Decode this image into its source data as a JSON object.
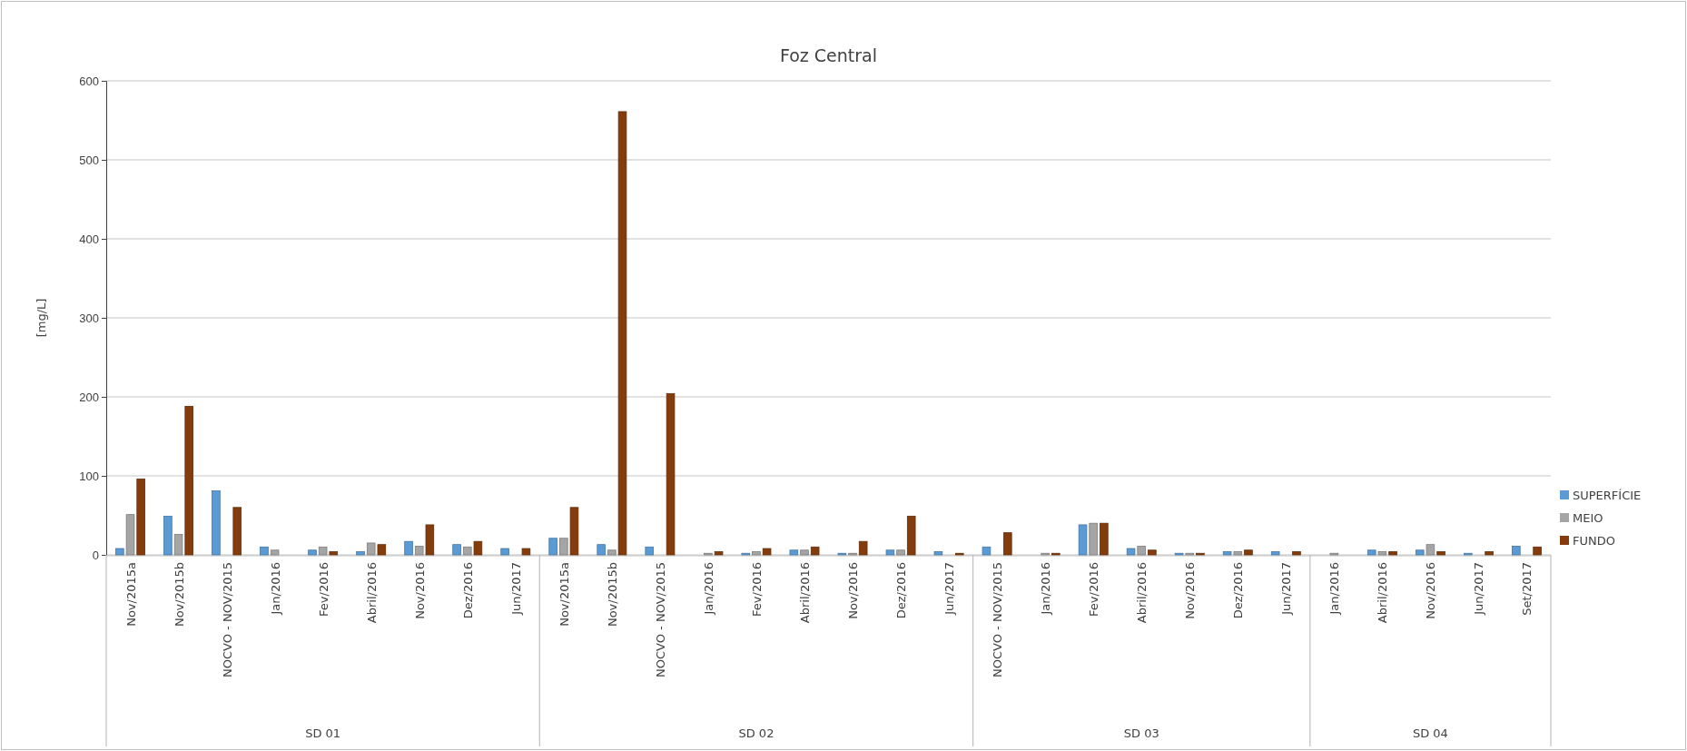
{
  "chart_data": {
    "type": "bar",
    "title": "Foz Central",
    "ylabel": "[mg/L]",
    "categories": [
      "Nov/2015a",
      "Nov/2015b",
      "NOCVO - NOV/2015",
      "Jan/2016",
      "Fev/2016",
      "Abril/2016",
      "Nov/2016",
      "Dez/2016",
      "Jun/2017",
      "Nov/2015a",
      "Nov/2015b",
      "NOCVO - NOV/2015",
      "Jan/2016",
      "Fev/2016",
      "Abril/2016",
      "Nov/2016",
      "Dez/2016",
      "Jun/2017",
      "NOCVO - NOV/2015",
      "Jan/2016",
      "Fev/2016",
      "Abril/2016",
      "Nov/2016",
      "Dez/2016",
      "Jun/2017",
      "Jan/2016",
      "Abril/2016",
      "Nov/2016",
      "Jun/2017",
      "Set/2017"
    ],
    "series": [
      {
        "name": "SUPERFÍCIE",
        "color": "#5b9bd5",
        "values": [
          8,
          49,
          81,
          10,
          6,
          4,
          17,
          13,
          8,
          21,
          13,
          10,
          null,
          2,
          6,
          2,
          6,
          4,
          10,
          null,
          38,
          8,
          2,
          4,
          4,
          null,
          6,
          6,
          2,
          11
        ]
      },
      {
        "name": "MEIO",
        "color": "#a5a5a5",
        "values": [
          51,
          26,
          null,
          6,
          10,
          15,
          11,
          10,
          null,
          21,
          6,
          null,
          2,
          4,
          6,
          2,
          6,
          null,
          null,
          2,
          40,
          11,
          2,
          4,
          null,
          2,
          4,
          13,
          null,
          null
        ]
      },
      {
        "name": "FUNDO",
        "color": "#843c0c",
        "values": [
          96,
          188,
          60,
          null,
          4,
          13,
          38,
          17,
          8,
          60,
          561,
          204,
          4,
          8,
          10,
          17,
          49,
          2,
          28,
          2,
          40,
          6,
          2,
          6,
          4,
          null,
          4,
          4,
          4,
          10
        ]
      }
    ],
    "annotations": [
      "SD 01",
      "SD 02",
      "SD 03",
      "SD 04"
    ],
    "ylim": [
      0,
      600
    ],
    "yticks": [
      0,
      100,
      200,
      300,
      400,
      500,
      600
    ],
    "grid": "y",
    "legend": "right"
  }
}
